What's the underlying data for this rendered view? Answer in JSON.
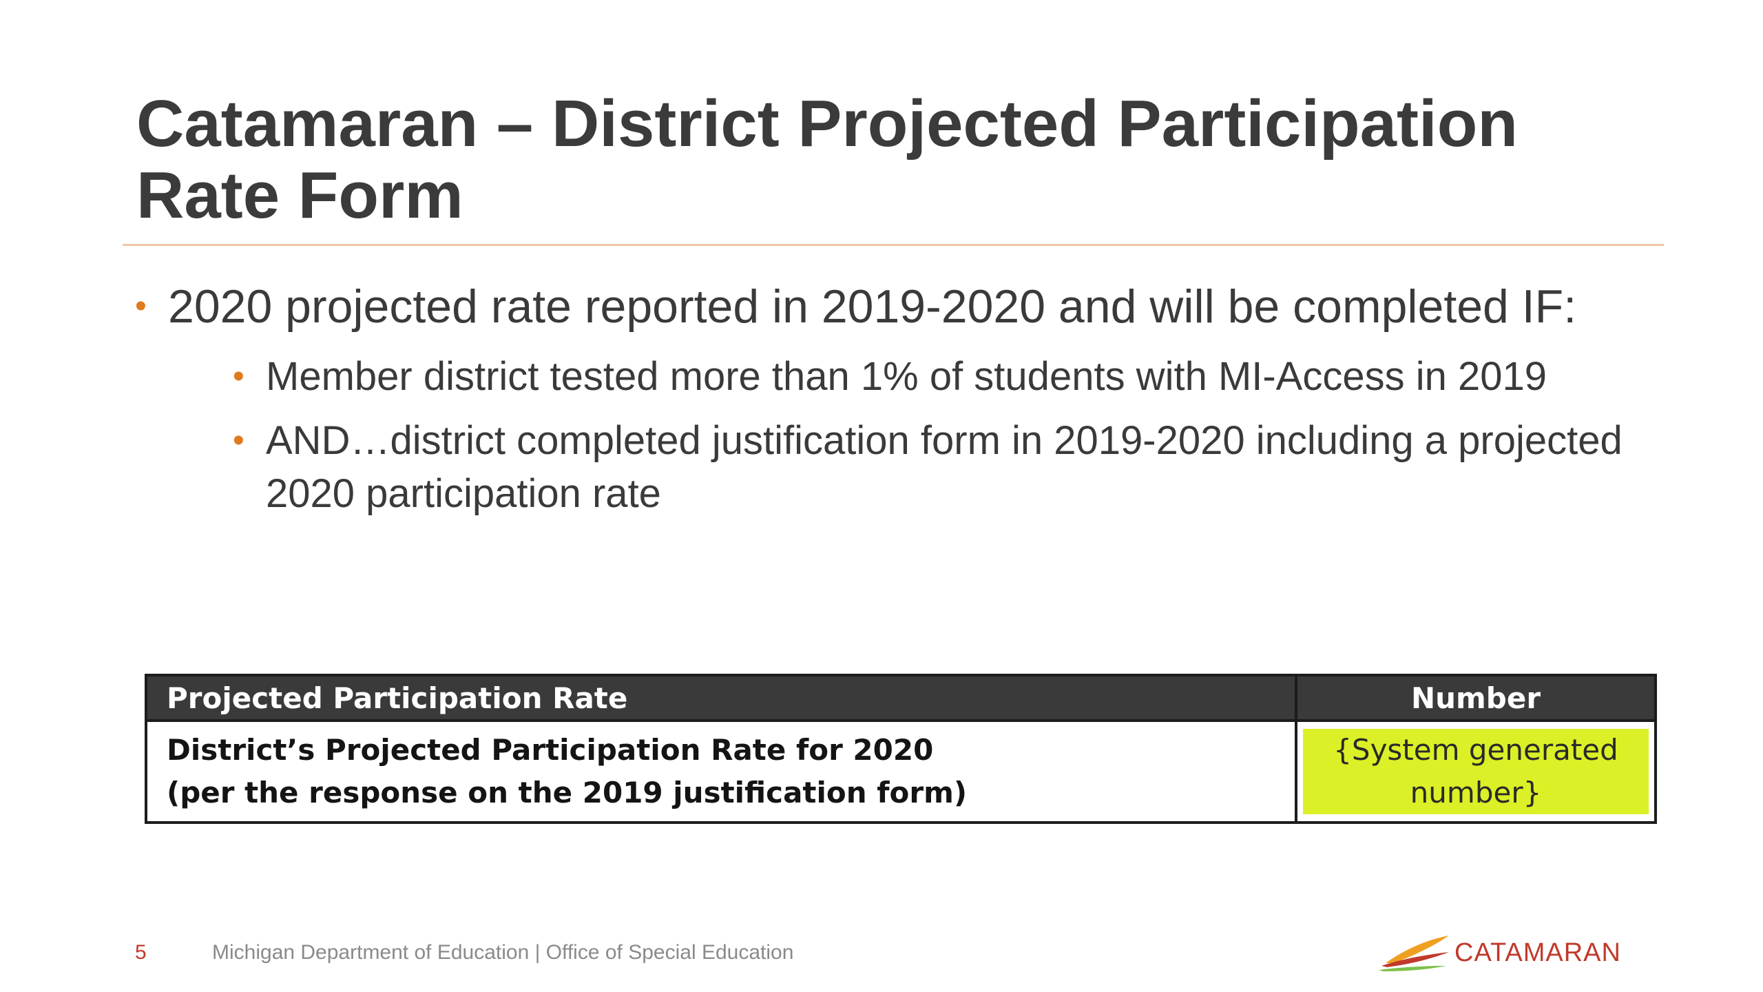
{
  "slide": {
    "title": "Catamaran – District Projected Participation Rate Form",
    "bullets": [
      {
        "text": "2020 projected rate reported in 2019-2020 and will be completed IF:",
        "children": [
          "Member district tested more than 1% of students with MI-Access in 2019",
          "AND…district completed justification form in 2019-2020 including a projected 2020 participation rate"
        ]
      }
    ]
  },
  "table": {
    "headers": [
      "Projected Participation Rate",
      "Number"
    ],
    "rows": [
      {
        "label_line1": "District’s Projected Participation Rate for 2020",
        "label_line2": "(per the response on the 2019 justification form)",
        "value_line1": "{System generated",
        "value_line2": "number}"
      }
    ]
  },
  "footer": {
    "page_number": "5",
    "organization": "Michigan Department of Education | Office of Special Education"
  },
  "logo": {
    "text": "CATAMARAN",
    "icon": "catamaran-sail-icon"
  },
  "colors": {
    "title": "#3b3b3b",
    "bullet_marker": "#e07a1f",
    "rule": "#f0c6a6",
    "table_header_bg": "#3a3a3a",
    "highlight": "#dbf026",
    "footer_page": "#c0392b",
    "logo_red": "#c0392b",
    "logo_orange": "#f0a020",
    "logo_green": "#7cc04a"
  }
}
